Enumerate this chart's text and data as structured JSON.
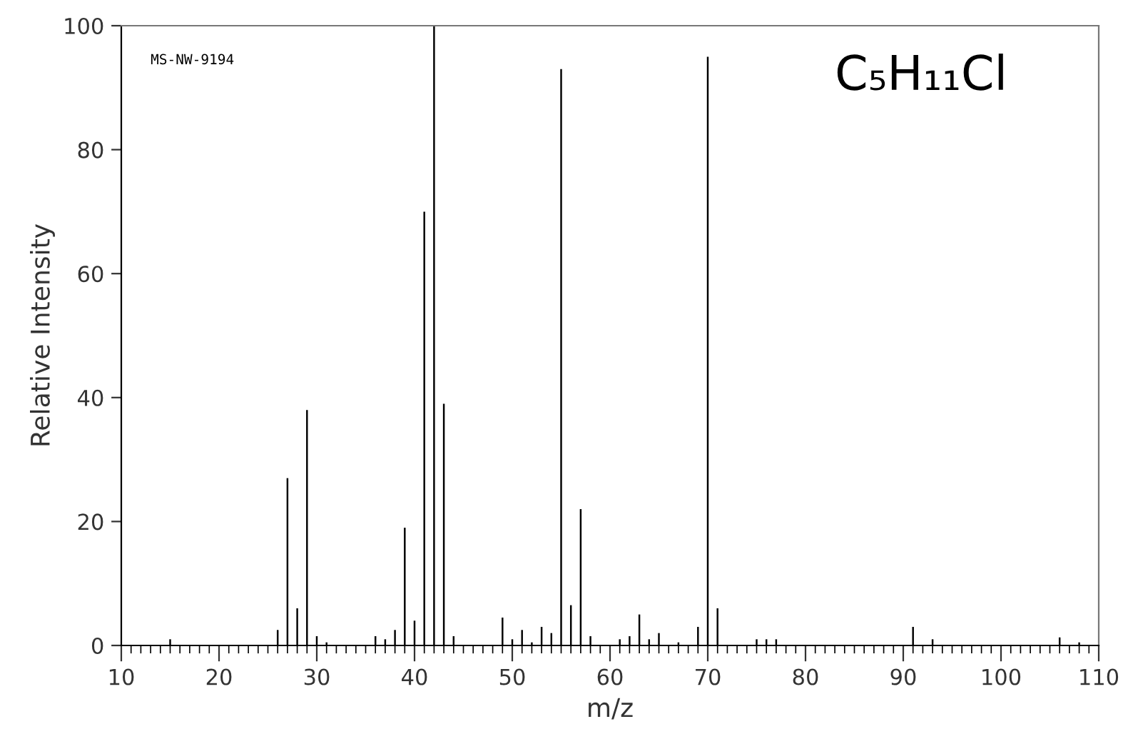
{
  "chart_data": {
    "type": "bar",
    "xlabel": "m/z",
    "ylabel": "Relative Intensity",
    "annotations": [
      "MS-NW-9194",
      "C₅H₁₁Cl"
    ],
    "x": [
      15,
      26,
      27,
      28,
      29,
      30,
      31,
      36,
      37,
      38,
      39,
      40,
      41,
      42,
      43,
      44,
      49,
      50,
      51,
      52,
      53,
      54,
      55,
      56,
      57,
      58,
      61,
      62,
      63,
      64,
      65,
      67,
      69,
      70,
      71,
      75,
      76,
      77,
      91,
      93,
      106,
      108
    ],
    "series": [
      {
        "color": "#000000",
        "values": [
          1,
          2.5,
          27,
          6,
          38,
          1.5,
          0.5,
          1.5,
          1,
          2.5,
          19,
          4,
          70,
          100,
          39,
          1.5,
          4.5,
          1,
          2.5,
          0.5,
          3,
          2,
          93,
          6.5,
          22,
          1.5,
          1,
          1.5,
          5,
          1,
          2,
          0.5,
          3,
          95,
          6,
          1,
          1,
          1,
          3,
          1,
          1.3,
          0.5
        ]
      }
    ],
    "xlim": [
      10,
      110
    ],
    "xticks": [
      10,
      20,
      30,
      40,
      50,
      60,
      70,
      80,
      90,
      100,
      110
    ],
    "ylim": [
      0,
      100
    ],
    "yticks": [
      0,
      20,
      40,
      60,
      80,
      100
    ],
    "grid": false,
    "legend": false
  }
}
